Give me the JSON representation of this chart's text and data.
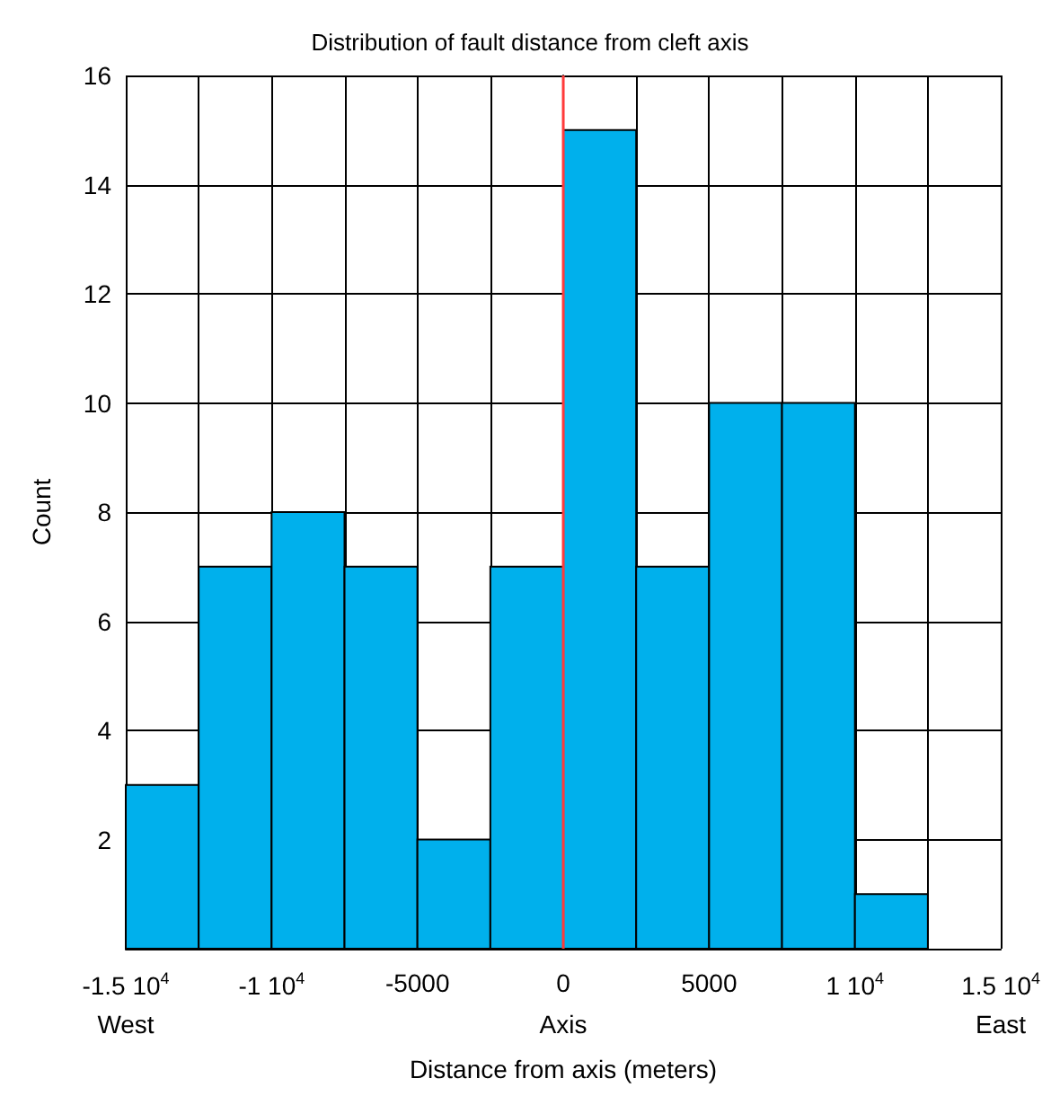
{
  "chart_data": {
    "type": "histogram",
    "title": "Distribution of fault distance from cleft axis",
    "xlabel": "Distance from axis (meters)",
    "ylabel": "Count",
    "bins": [
      -15000,
      -12500,
      -10000,
      -7500,
      -5000,
      -2500,
      0,
      2500,
      5000,
      7500,
      10000,
      12500,
      15000
    ],
    "values": [
      3,
      7,
      8,
      7,
      2,
      7,
      15,
      7,
      10,
      10,
      1,
      0
    ],
    "color": "#00b0ec",
    "xlim": [
      -15000,
      15000
    ],
    "xticks": [
      {
        "value": -15000,
        "label": "-1.5 10$^{4}$"
      },
      {
        "value": -12500,
        "label": null
      },
      {
        "value": -10000,
        "label": "-1 10$^{4}$"
      },
      {
        "value": -7500,
        "label": null
      },
      -5000,
      {
        "value": -2500,
        "label": null
      },
      0,
      {
        "value": 2500,
        "label": null
      },
      5000,
      {
        "value": 7500,
        "label": null
      },
      {
        "value": 10000,
        "label": "1 10$^{4}$"
      },
      {
        "value": 12500,
        "label": null
      },
      {
        "value": 15000,
        "label": "1.5 10$^{4}$"
      }
    ],
    "ylim": [
      0,
      16
    ],
    "yticks": [
      {
        "value": 0,
        "label": null
      },
      2,
      4,
      6,
      8,
      10,
      12,
      14,
      16
    ],
    "grid": true,
    "ref_lines": [
      {
        "axis": "x",
        "value": 0,
        "color": "#ff3b3b"
      }
    ],
    "annotations": [
      "West",
      "Axis",
      "East"
    ]
  }
}
